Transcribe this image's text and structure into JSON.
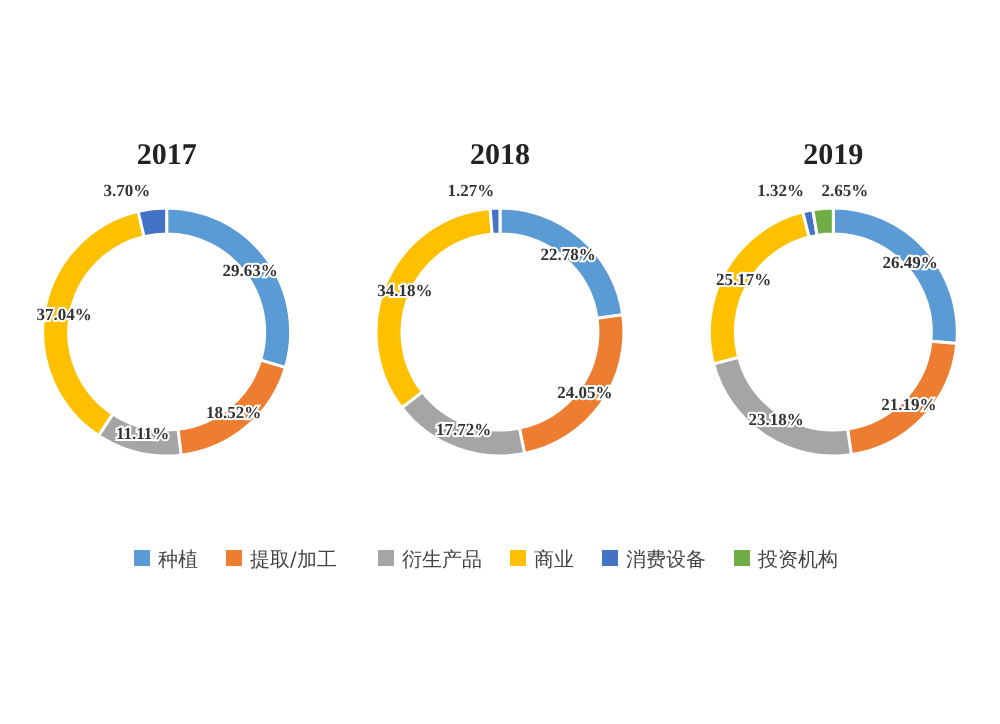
{
  "chart_data": [
    {
      "type": "donut",
      "title": "2017",
      "categories": [
        null,
        null,
        null,
        null,
        null
      ],
      "values": [
        29.63,
        18.52,
        11.11,
        37.04,
        3.7
      ],
      "value_labels": [
        "29.63%",
        "18.52%",
        "11.11%",
        "37.04%",
        "3.70%"
      ],
      "colors": [
        "#5b9bd5",
        "#ed7d31",
        "#a5a5a5",
        "#ffc000",
        "#4472c4"
      ]
    },
    {
      "type": "donut",
      "title": "2018",
      "categories": [
        null,
        null,
        null,
        null,
        null
      ],
      "values": [
        22.78,
        24.05,
        17.72,
        34.18,
        1.27
      ],
      "value_labels": [
        "22.78%",
        "24.05%",
        "17.72%",
        "34.18%",
        "1.27%"
      ],
      "colors": [
        "#5b9bd5",
        "#ed7d31",
        "#a5a5a5",
        "#ffc000",
        "#4472c4"
      ]
    },
    {
      "type": "donut",
      "title": "2019",
      "categories": [
        "种植",
        "提取/加工",
        "衍生产品",
        "商业",
        "消费设备",
        "投资机构"
      ],
      "values": [
        26.49,
        21.19,
        23.18,
        25.17,
        1.32,
        2.65
      ],
      "value_labels": [
        "26.49%",
        "21.19%",
        "23.18%",
        "25.17%",
        "1.32%",
        "2.65%"
      ],
      "colors": [
        "#5b9bd5",
        "#ed7d31",
        "#a5a5a5",
        "#ffc000",
        "#4472c4",
        "#70ad47"
      ],
      "legend": "bottom"
    }
  ]
}
